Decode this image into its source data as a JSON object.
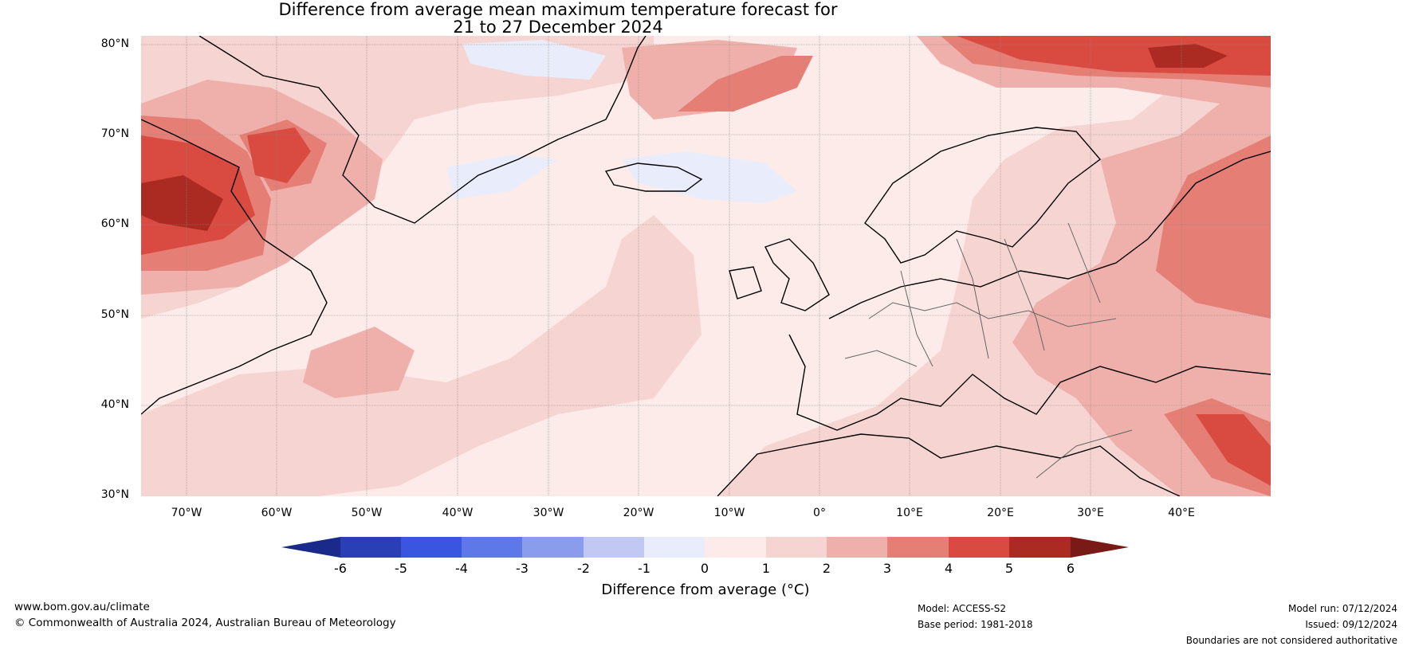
{
  "title_line1": "Difference from average mean maximum temperature forecast for",
  "title_line2": "21 to 27 December 2024",
  "lat_labels": [
    "80°N",
    "70°N",
    "60°N",
    "50°N",
    "40°N",
    "30°N"
  ],
  "lon_labels": [
    "70°W",
    "60°W",
    "50°W",
    "40°W",
    "30°W",
    "20°W",
    "10°W",
    "0°",
    "10°E",
    "20°E",
    "30°E",
    "40°E"
  ],
  "colorbar": {
    "label": "Difference from average (°C)",
    "ticks": [
      "-6",
      "-5",
      "-4",
      "-3",
      "-2",
      "-1",
      "0",
      "1",
      "2",
      "3",
      "4",
      "5",
      "6"
    ],
    "colors": [
      "#1a2a8a",
      "#2a3fb5",
      "#3a55e0",
      "#5f78e8",
      "#8a9ded",
      "#c0c8f3",
      "#e9ecfb",
      "#fcebe9",
      "#f6d4d1",
      "#efb0ab",
      "#e57f76",
      "#d94a40",
      "#ab2a22",
      "#7a1a16"
    ]
  },
  "footer": {
    "website": "www.bom.gov.au/climate",
    "copyright": "© Commonwealth of Australia 2024, Australian Bureau of Meteorology",
    "model": "Model: ACCESS-S2",
    "base_period": "Base period: 1981-2018",
    "model_run": "Model run: 07/12/2024",
    "issued": "Issued: 09/12/2024",
    "disclaimer": "Boundaries are not considered authoritative"
  }
}
